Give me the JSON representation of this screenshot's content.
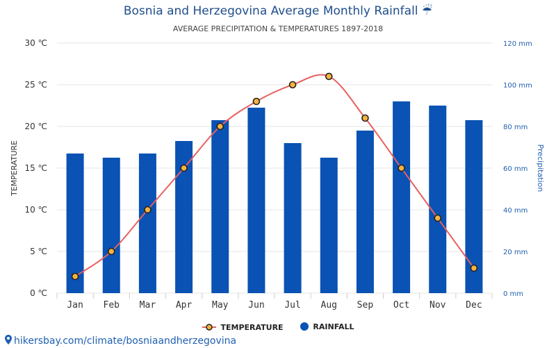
{
  "page": {
    "title": "Bosnia and Herzegovina Average Monthly Rainfall ☔",
    "subtitle": "AVERAGE PRECIPITATION & TEMPERATURES 1897-2018",
    "source_link": "hikersbay.com/climate/bosniaandherzegovina"
  },
  "legend": {
    "temperature_label": "TEMPERATURE",
    "rainfall_label": "RAINFALL"
  },
  "colors": {
    "bar": "#0a52b3",
    "line": "#e8605f",
    "marker_fill": "#f4b340",
    "marker_stroke": "#222222",
    "title": "#1f4e8c",
    "right_axis": "#1f5fb0",
    "grid": "#e6e6e6"
  },
  "chart_data": {
    "type": "bar+line",
    "title": "Bosnia and Herzegovina Average Monthly Rainfall ☔",
    "subtitle": "AVERAGE PRECIPITATION & TEMPERATURES 1897-2018",
    "categories": [
      "Jan",
      "Feb",
      "Mar",
      "Apr",
      "May",
      "Jun",
      "Jul",
      "Aug",
      "Sep",
      "Oct",
      "Nov",
      "Dec"
    ],
    "series": [
      {
        "name": "TEMPERATURE",
        "type": "line",
        "axis": "left",
        "values": [
          2,
          5,
          10,
          15,
          20,
          23,
          25,
          26,
          21,
          15,
          9,
          3
        ]
      },
      {
        "name": "RAINFALL",
        "type": "bar",
        "axis": "right",
        "values": [
          67,
          65,
          67,
          73,
          83,
          89,
          72,
          65,
          78,
          92,
          90,
          83
        ]
      }
    ],
    "y_left": {
      "label": "TEMPERATURE",
      "unit": "℃",
      "ylim": [
        0,
        30
      ],
      "ticks": [
        "0 ℃",
        "5 ℃",
        "10 ℃",
        "15 ℃",
        "20 ℃",
        "25 ℃",
        "30 ℃"
      ]
    },
    "y_right": {
      "label": "Precipitation",
      "unit": "mm",
      "ylim": [
        0,
        120
      ],
      "ticks": [
        "0 mm",
        "20 mm",
        "40 mm",
        "60 mm",
        "80 mm",
        "100 mm",
        "120 mm"
      ]
    },
    "grid": true,
    "legend_position": "bottom-center"
  }
}
